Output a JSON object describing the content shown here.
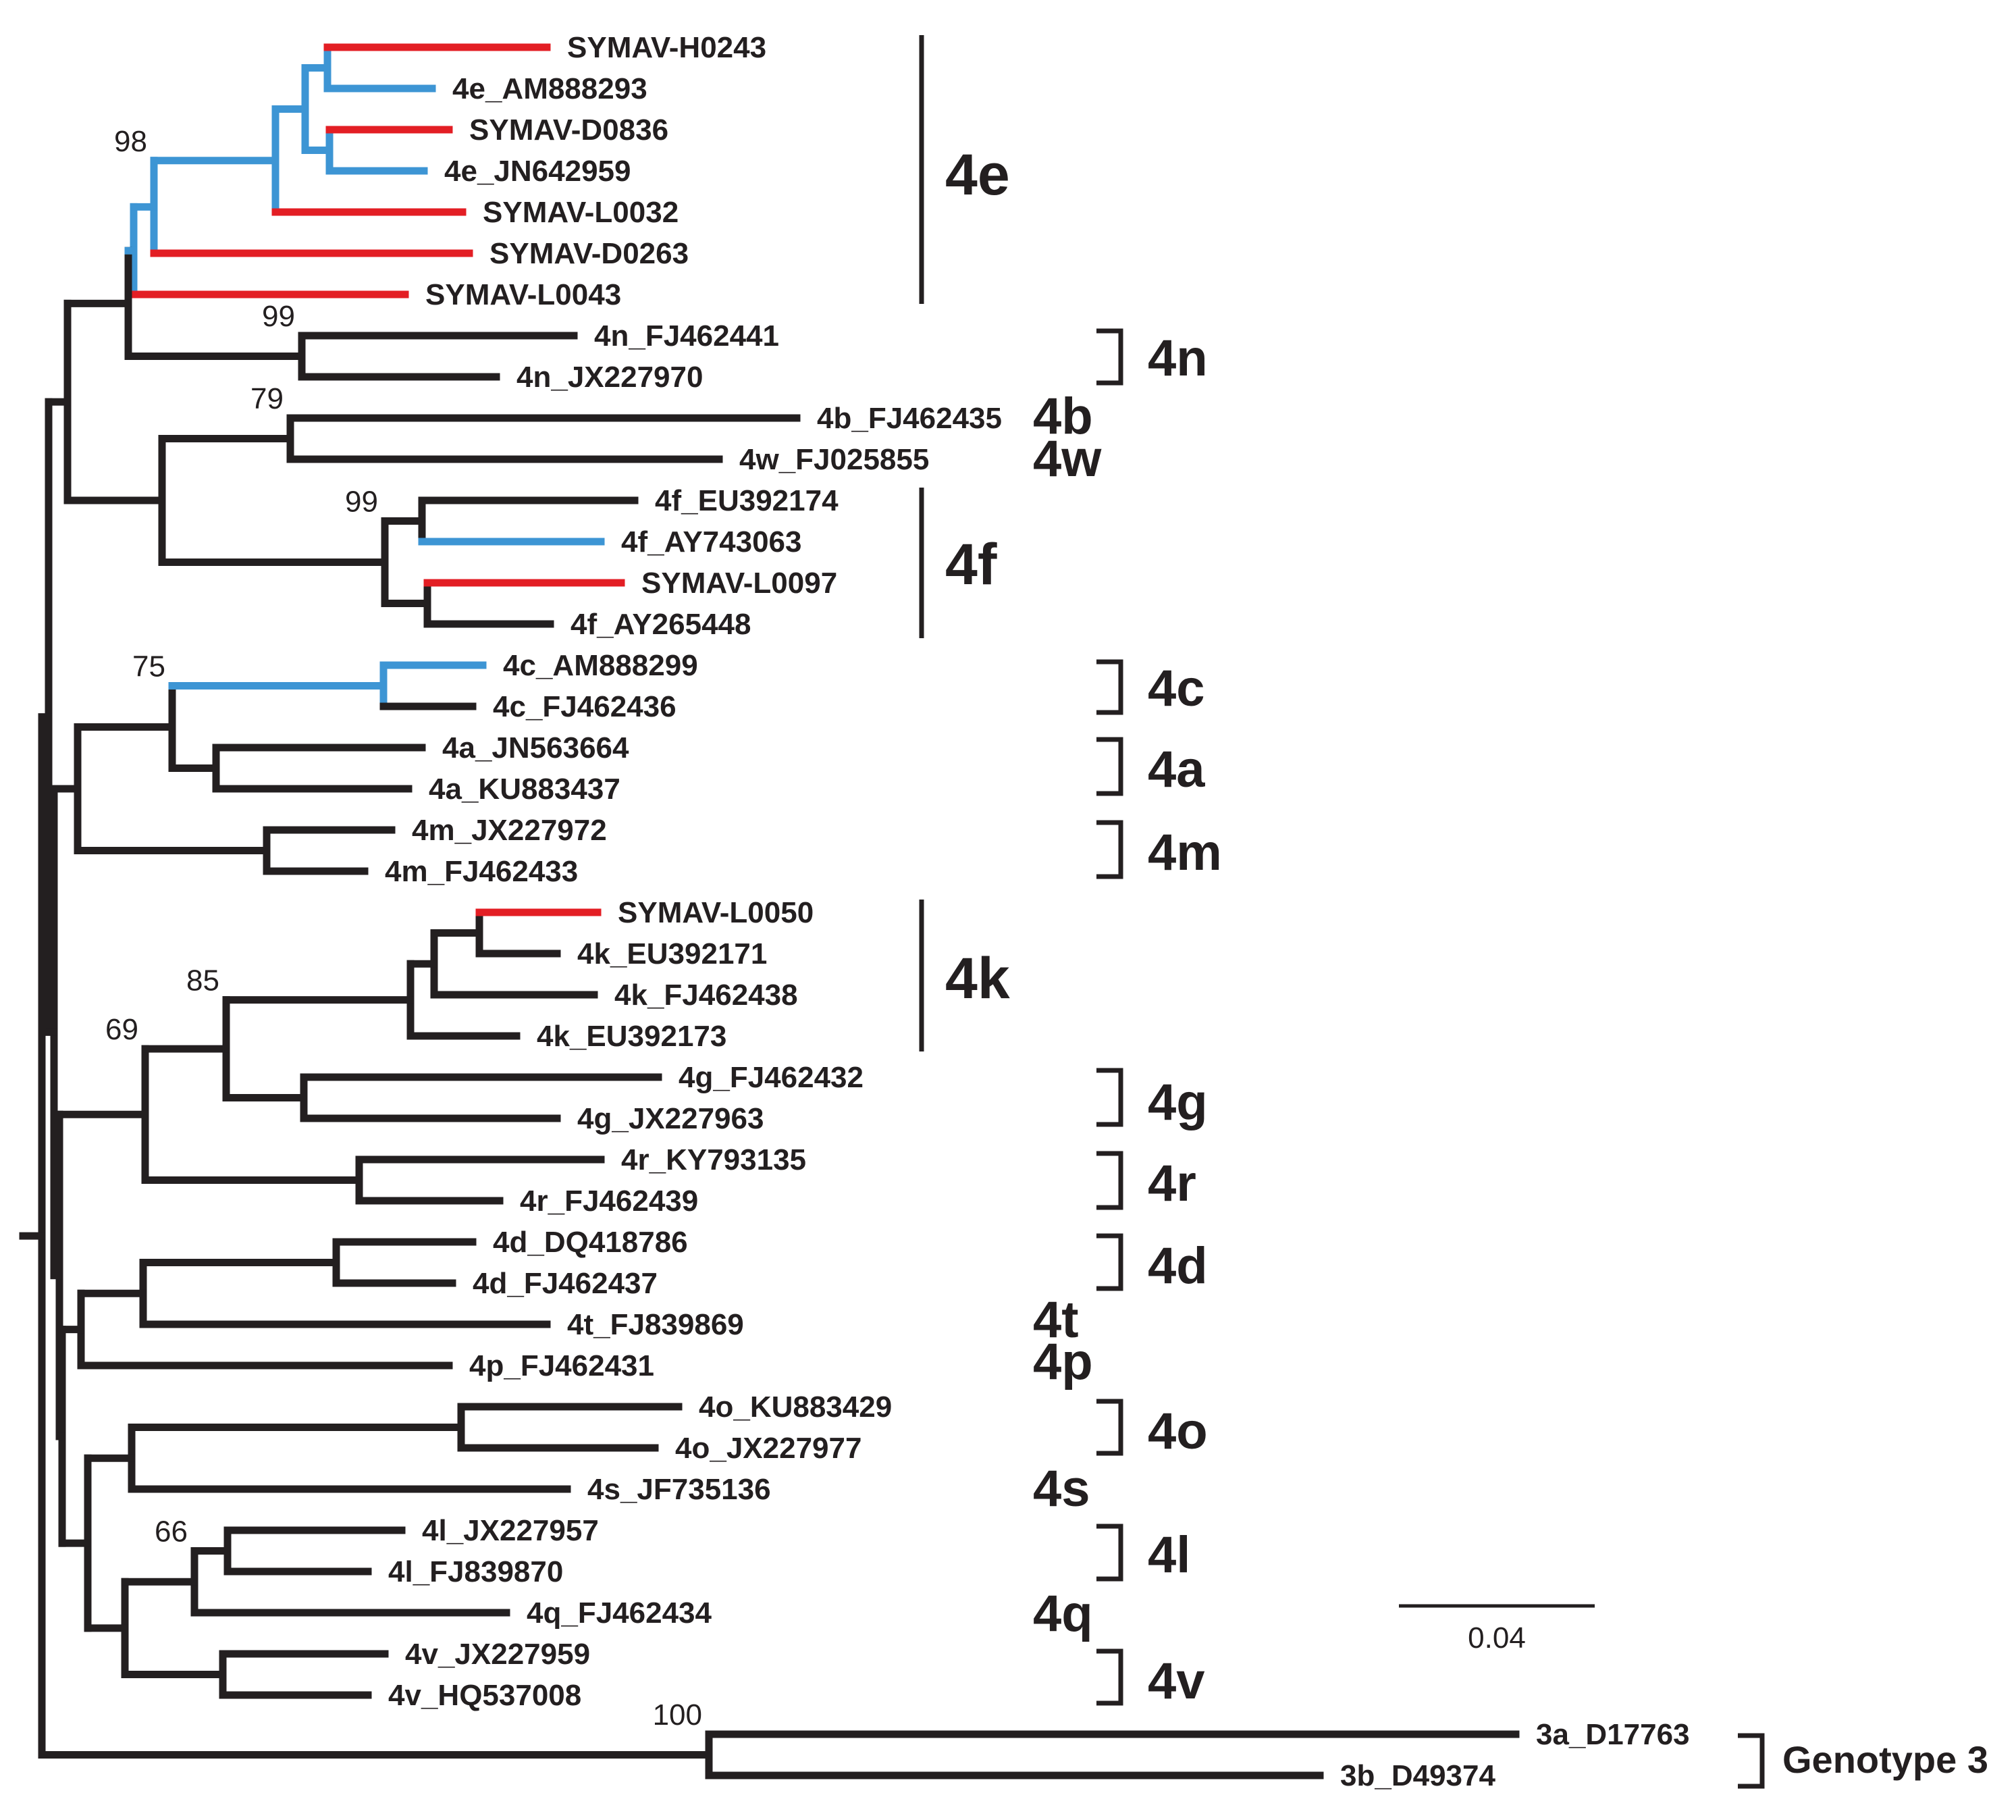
{
  "figure": {
    "type": "phylogenetic_tree",
    "colors": {
      "black": "#231f20",
      "red": "#e31e24",
      "blue": "#3d95d4"
    },
    "scale_bar": {
      "label": "0.04"
    },
    "tips": [
      {
        "label": "SYMAV-H0243",
        "color": "red"
      },
      {
        "label": "4e_AM888293",
        "color": "blue"
      },
      {
        "label": "SYMAV-D0836",
        "color": "red"
      },
      {
        "label": "4e_JN642959",
        "color": "blue"
      },
      {
        "label": "SYMAV-L0032",
        "color": "red"
      },
      {
        "label": "SYMAV-D0263",
        "color": "red"
      },
      {
        "label": "SYMAV-L0043",
        "color": "red"
      },
      {
        "label": "4n_FJ462441",
        "color": "black"
      },
      {
        "label": "4n_JX227970",
        "color": "black"
      },
      {
        "label": "4b_FJ462435",
        "color": "black"
      },
      {
        "label": "4w_FJ025855",
        "color": "black"
      },
      {
        "label": "4f_EU392174",
        "color": "black"
      },
      {
        "label": "4f_AY743063",
        "color": "blue"
      },
      {
        "label": "SYMAV-L0097",
        "color": "red"
      },
      {
        "label": "4f_AY265448",
        "color": "black"
      },
      {
        "label": "4c_AM888299",
        "color": "blue"
      },
      {
        "label": "4c_FJ462436",
        "color": "black"
      },
      {
        "label": "4a_JN563664",
        "color": "black"
      },
      {
        "label": "4a_KU883437",
        "color": "black"
      },
      {
        "label": "4m_JX227972",
        "color": "black"
      },
      {
        "label": "4m_FJ462433",
        "color": "black"
      },
      {
        "label": "SYMAV-L0050",
        "color": "red"
      },
      {
        "label": "4k_EU392171",
        "color": "black"
      },
      {
        "label": "4k_FJ462438",
        "color": "black"
      },
      {
        "label": "4k_EU392173",
        "color": "black"
      },
      {
        "label": "4g_FJ462432",
        "color": "black"
      },
      {
        "label": "4g_JX227963",
        "color": "black"
      },
      {
        "label": "4r_KY793135",
        "color": "black"
      },
      {
        "label": "4r_FJ462439",
        "color": "black"
      },
      {
        "label": "4d_DQ418786",
        "color": "black"
      },
      {
        "label": "4d_FJ462437",
        "color": "black"
      },
      {
        "label": "4t_FJ839869",
        "color": "black"
      },
      {
        "label": "4p_FJ462431",
        "color": "black"
      },
      {
        "label": "4o_KU883429",
        "color": "black"
      },
      {
        "label": "4o_JX227977",
        "color": "black"
      },
      {
        "label": "4s_JF735136",
        "color": "black"
      },
      {
        "label": "4l_JX227957",
        "color": "black"
      },
      {
        "label": "4l_FJ839870",
        "color": "black"
      },
      {
        "label": "4q_FJ462434",
        "color": "black"
      },
      {
        "label": "4v_JX227959",
        "color": "black"
      },
      {
        "label": "4v_HQ537008",
        "color": "black"
      },
      {
        "label": "3a_D17763",
        "color": "black"
      },
      {
        "label": "3b_D49374",
        "color": "black"
      }
    ],
    "bootstrap_values": [
      "98",
      "99",
      "79",
      "99",
      "75",
      "85",
      "69",
      "66",
      "100"
    ],
    "clades": [
      "4e",
      "4n",
      "4b",
      "4w",
      "4f",
      "4c",
      "4a",
      "4m",
      "4k",
      "4g",
      "4r",
      "4d",
      "4t",
      "4p",
      "4o",
      "4s",
      "4l",
      "4q",
      "4v",
      "Genotype 3"
    ]
  }
}
